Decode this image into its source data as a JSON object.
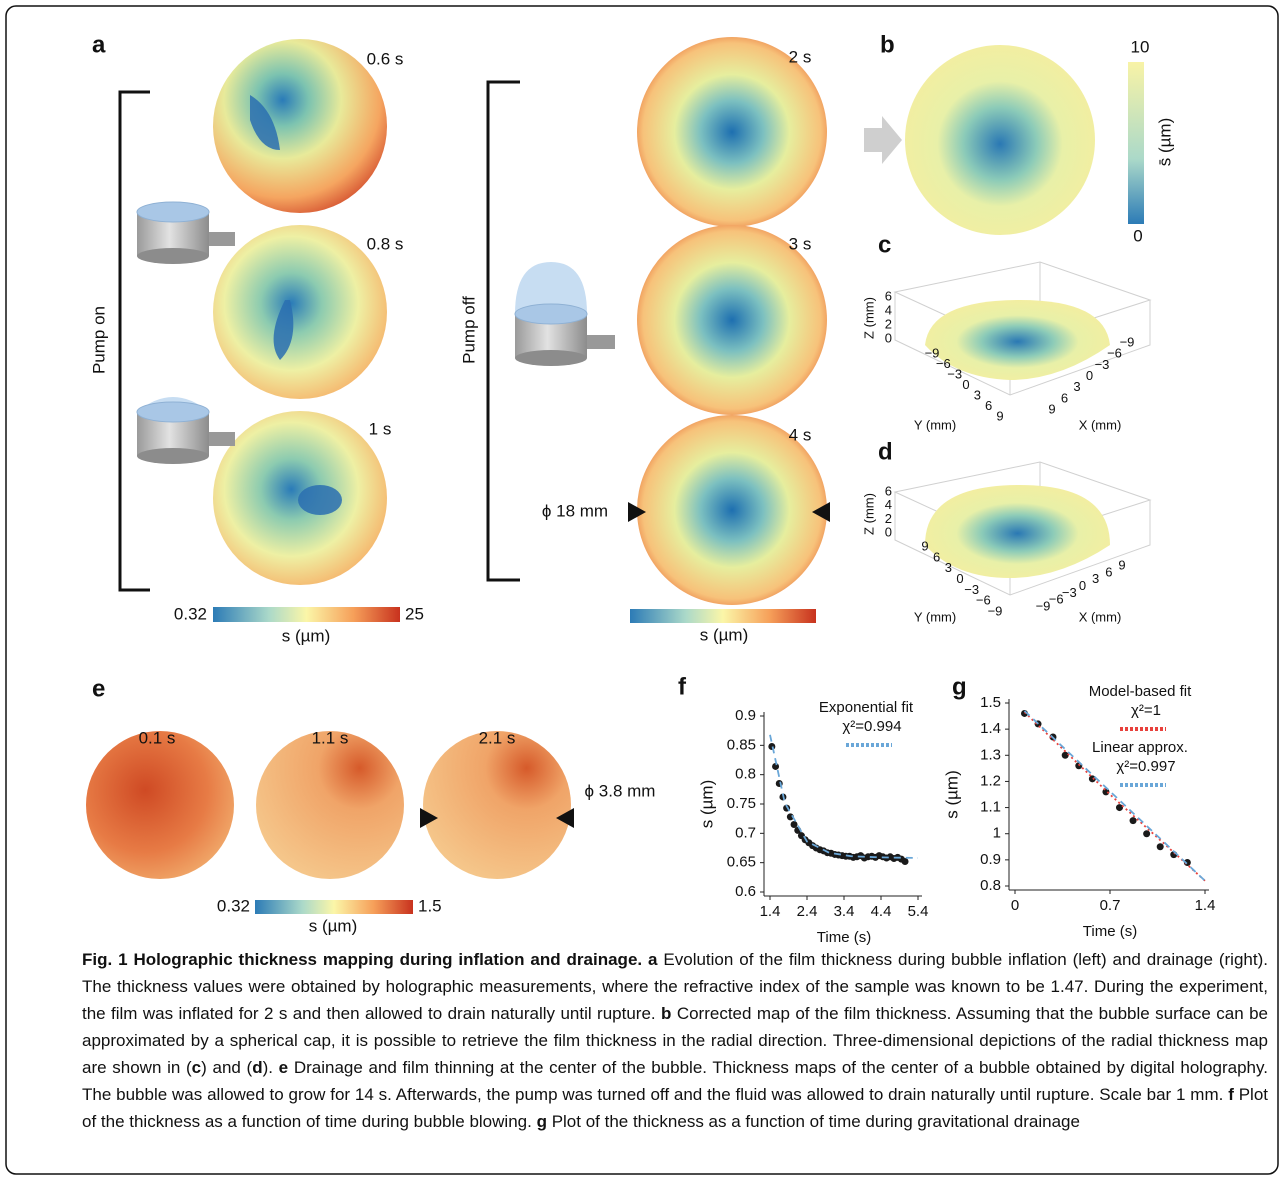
{
  "panel_a": {
    "label": "a",
    "inflation_times": [
      "0.6 s",
      "0.8 s",
      "1 s"
    ],
    "pump_on": "Pump on",
    "drainage_times": [
      "2 s",
      "3 s",
      "4 s"
    ],
    "pump_off": "Pump off",
    "diameter": "ϕ 18 mm",
    "colorbar_min": "0.32",
    "colorbar_max": "25",
    "colorbar_label": "s (µm)",
    "colorbar2_label": "s (µm)"
  },
  "panel_b": {
    "label": "b",
    "colorbar_max": "10",
    "colorbar_min": "0",
    "colorbar_label": "s̄ (µm)"
  },
  "panel_c": {
    "label": "c",
    "z_label": "Z (mm)",
    "z_ticks": [
      "6",
      "4",
      "2",
      "0"
    ],
    "y_ticks": [
      "−9",
      "−6",
      "−3",
      "0",
      "3",
      "6",
      "9"
    ],
    "x_ticks": [
      "9",
      "6",
      "3",
      "0",
      "−3",
      "−6",
      "−9"
    ],
    "y_label": "Y (mm)",
    "x_label": "X (mm)"
  },
  "panel_d": {
    "label": "d",
    "z_label": "Z (mm)",
    "z_ticks": [
      "6",
      "4",
      "2",
      "0"
    ],
    "y_ticks": [
      "9",
      "6",
      "3",
      "0",
      "−3",
      "−6",
      "−9"
    ],
    "x_ticks": [
      "−9",
      "−6",
      "−3",
      "0",
      "3",
      "6",
      "9"
    ],
    "y_label": "Y (mm)",
    "x_label": "X (mm)"
  },
  "panel_e": {
    "label": "e",
    "times": [
      "0.1 s",
      "1.1 s",
      "2.1 s"
    ],
    "diameter": "ϕ 3.8 mm",
    "colorbar_min": "0.32",
    "colorbar_max": "1.5",
    "colorbar_label": "s (µm)"
  },
  "panel_f": {
    "label": "f",
    "x_label": "Time (s)",
    "y_label": "s (µm)",
    "xlim": [
      1.4,
      5.4
    ],
    "ylim": [
      0.6,
      0.9
    ],
    "xticks": [
      1.4,
      2.4,
      3.4,
      4.4,
      5.4
    ],
    "yticks": [
      0.6,
      0.65,
      0.7,
      0.75,
      0.8,
      0.85,
      0.9
    ],
    "x": [
      1.45,
      1.55,
      1.65,
      1.75,
      1.85,
      1.95,
      2.05,
      2.15,
      2.25,
      2.35,
      2.45,
      2.55,
      2.65,
      2.75,
      2.85,
      2.95,
      3.05,
      3.15,
      3.25,
      3.35,
      3.45,
      3.55,
      3.65,
      3.75,
      3.85,
      3.95,
      4.05,
      4.15,
      4.25,
      4.35,
      4.45,
      4.55,
      4.65,
      4.75,
      4.85,
      4.95,
      5.05
    ],
    "values": [
      0.848,
      0.814,
      0.785,
      0.762,
      0.743,
      0.728,
      0.715,
      0.705,
      0.696,
      0.689,
      0.684,
      0.679,
      0.675,
      0.672,
      0.67,
      0.667,
      0.666,
      0.664,
      0.663,
      0.662,
      0.661,
      0.661,
      0.659,
      0.66,
      0.662,
      0.658,
      0.66,
      0.661,
      0.659,
      0.662,
      0.66,
      0.658,
      0.66,
      0.657,
      0.659,
      0.656,
      0.652
    ],
    "fits": [
      {
        "name": "Exponential fit",
        "stat": "χ²=0.994",
        "color": "#6aa7d8",
        "x": [
          1.4,
          1.8,
          2.4,
          3.0,
          3.6,
          4.4,
          5.4
        ],
        "values": [
          0.868,
          0.752,
          0.686,
          0.667,
          0.661,
          0.659,
          0.658
        ]
      }
    ]
  },
  "panel_g": {
    "label": "g",
    "x_label": "Time (s)",
    "y_label": "s (µm)",
    "xlim": [
      0,
      1.4
    ],
    "ylim": [
      0.8,
      1.5
    ],
    "xticks": [
      0,
      0.7,
      1.4
    ],
    "yticks": [
      0.8,
      0.9,
      1,
      1.1,
      1.2,
      1.3,
      1.4,
      1.5
    ],
    "x": [
      0.07,
      0.17,
      0.28,
      0.37,
      0.47,
      0.57,
      0.67,
      0.77,
      0.87,
      0.97,
      1.07,
      1.17,
      1.27
    ],
    "values": [
      1.46,
      1.42,
      1.37,
      1.3,
      1.26,
      1.21,
      1.16,
      1.1,
      1.05,
      1.0,
      0.95,
      0.92,
      0.89
    ],
    "fits": [
      {
        "name": "Model-based fit",
        "stat": "χ²=1",
        "color": "#e8413c",
        "x": [
          0.07,
          0.7,
          1.4
        ],
        "values": [
          1.465,
          1.15,
          0.82
        ]
      },
      {
        "name": "Linear approx.",
        "stat": "χ²=0.997",
        "color": "#6aa7d8",
        "x": [
          0.07,
          1.4
        ],
        "values": [
          1.47,
          0.82
        ]
      }
    ]
  },
  "caption": {
    "title": "Fig. 1 Holographic thickness mapping during inflation and drainage.",
    "a_label": "a",
    "a_text": "Evolution of the film thickness during bubble inflation (left) and drainage (right). The thickness values were obtained by holographic measurements, where the refractive index of the sample was known to be 1.47. During the experiment, the film was inflated for 2 s and then allowed to drain naturally until rupture.",
    "b_label": "b",
    "b_text": "Corrected map of the film thickness. Assuming that the bubble surface can be approximated by a spherical cap, it is possible to retrieve the film thickness in the radial direction. Three-dimensional depictions of the radial thickness map are shown in (",
    "c_label": "c",
    "c_text": ") and (",
    "d_label": "d",
    "d_text": ").",
    "e_label": "e",
    "e_text": "Drainage and film thinning at the center of the bubble. Thickness maps of the center of a bubble obtained by digital holography. The bubble was allowed to grow for 14 s. Afterwards, the pump was turned off and the fluid was allowed to drain naturally until rupture. Scale bar 1 mm.",
    "f_label": "f",
    "f_text": "Plot of the thickness as a function of time during bubble blowing.",
    "g_label": "g",
    "g_text": "Plot of the thickness as a function of time during gravitational drainage"
  }
}
